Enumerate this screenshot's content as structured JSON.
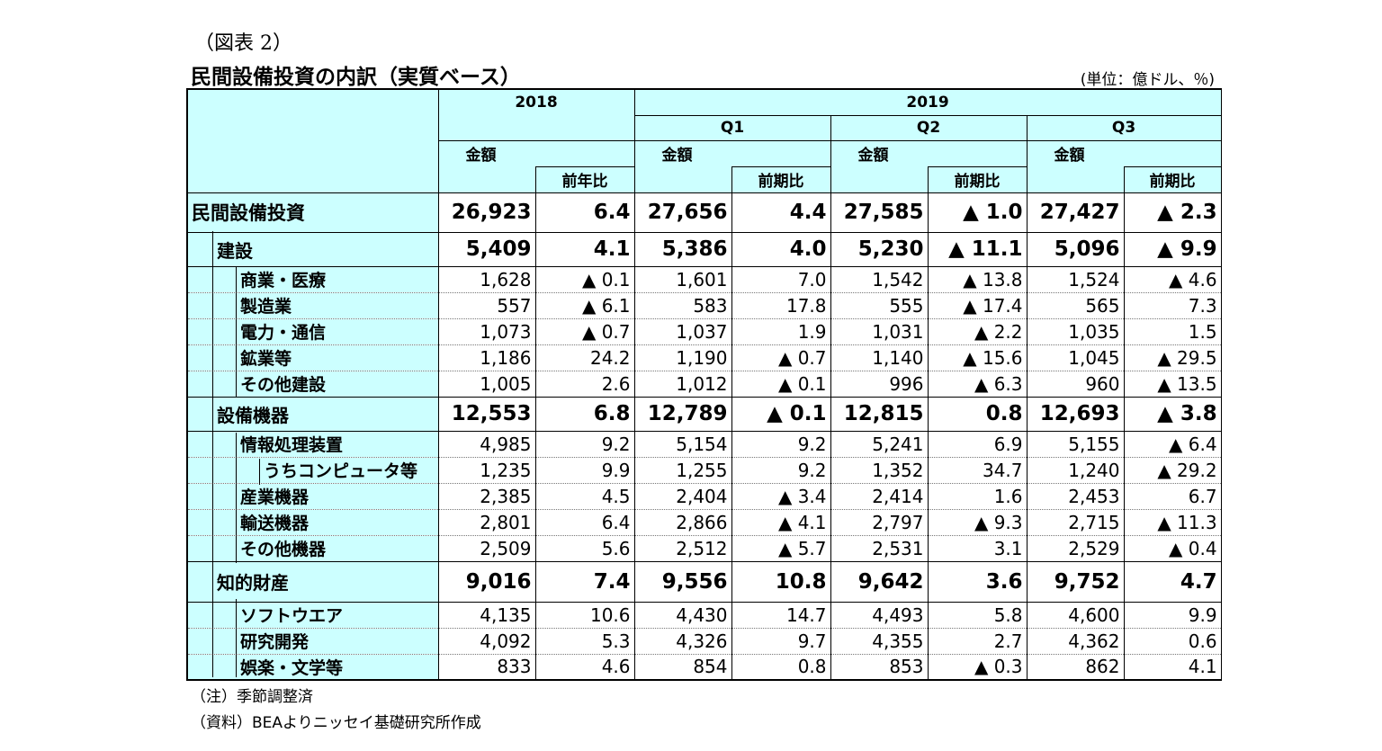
{
  "figure_label": "（図表 2）",
  "title": "民間設備投資の内訳（実質ベース）",
  "unit": "(単位：億ドル、％)",
  "header": {
    "year_2018": "2018",
    "year_2019": "2019",
    "q1": "Q1",
    "q2": "Q2",
    "q3": "Q3",
    "amount": "金額",
    "yoy": "前年比",
    "qoq": "前期比"
  },
  "rows": [
    {
      "label": "民間設備投資",
      "values": [
        "26,923",
        "6.4",
        "27,656",
        "4.4",
        "27,585",
        "▲ 1.0",
        "27,427",
        "▲ 2.3"
      ]
    },
    {
      "label": "建設",
      "values": [
        "5,409",
        "4.1",
        "5,386",
        "4.0",
        "5,230",
        "▲ 11.1",
        "5,096",
        "▲ 9.9"
      ]
    },
    {
      "label": "商業・医療",
      "values": [
        "1,628",
        "▲ 0.1",
        "1,601",
        "7.0",
        "1,542",
        "▲ 13.8",
        "1,524",
        "▲ 4.6"
      ]
    },
    {
      "label": "製造業",
      "values": [
        "557",
        "▲ 6.1",
        "583",
        "17.8",
        "555",
        "▲ 17.4",
        "565",
        "7.3"
      ]
    },
    {
      "label": "電力・通信",
      "values": [
        "1,073",
        "▲ 0.7",
        "1,037",
        "1.9",
        "1,031",
        "▲ 2.2",
        "1,035",
        "1.5"
      ]
    },
    {
      "label": "鉱業等",
      "values": [
        "1,186",
        "24.2",
        "1,190",
        "▲ 0.7",
        "1,140",
        "▲ 15.6",
        "1,045",
        "▲ 29.5"
      ]
    },
    {
      "label": "その他建設",
      "values": [
        "1,005",
        "2.6",
        "1,012",
        "▲ 0.1",
        "996",
        "▲ 6.3",
        "960",
        "▲ 13.5"
      ]
    },
    {
      "label": "設備機器",
      "values": [
        "12,553",
        "6.8",
        "12,789",
        "▲ 0.1",
        "12,815",
        "0.8",
        "12,693",
        "▲ 3.8"
      ]
    },
    {
      "label": "情報処理装置",
      "values": [
        "4,985",
        "9.2",
        "5,154",
        "9.2",
        "5,241",
        "6.9",
        "5,155",
        "▲ 6.4"
      ]
    },
    {
      "label": "うちコンピュータ等",
      "values": [
        "1,235",
        "9.9",
        "1,255",
        "9.2",
        "1,352",
        "34.7",
        "1,240",
        "▲ 29.2"
      ]
    },
    {
      "label": "産業機器",
      "values": [
        "2,385",
        "4.5",
        "2,404",
        "▲ 3.4",
        "2,414",
        "1.6",
        "2,453",
        "6.7"
      ]
    },
    {
      "label": "輸送機器",
      "values": [
        "2,801",
        "6.4",
        "2,866",
        "▲ 4.1",
        "2,797",
        "▲ 9.3",
        "2,715",
        "▲ 11.3"
      ]
    },
    {
      "label": "その他機器",
      "values": [
        "2,509",
        "5.6",
        "2,512",
        "▲ 5.7",
        "2,531",
        "3.1",
        "2,529",
        "▲ 0.4"
      ]
    },
    {
      "label": "知的財産",
      "values": [
        "9,016",
        "7.4",
        "9,556",
        "10.8",
        "9,642",
        "3.6",
        "9,752",
        "4.7"
      ]
    },
    {
      "label": "ソフトウエア",
      "values": [
        "4,135",
        "10.6",
        "4,430",
        "14.7",
        "4,493",
        "5.8",
        "4,600",
        "9.9"
      ]
    },
    {
      "label": "研究開発",
      "values": [
        "4,092",
        "5.3",
        "4,326",
        "9.7",
        "4,355",
        "2.7",
        "4,362",
        "0.6"
      ]
    },
    {
      "label": "娯楽・文学等",
      "values": [
        "833",
        "4.6",
        "854",
        "0.8",
        "853",
        "▲ 0.3",
        "862",
        "4.1"
      ]
    }
  ],
  "notes": {
    "note1": "（注）季節調整済",
    "note2": "（資料）BEAよりニッセイ基礎研究所作成"
  }
}
